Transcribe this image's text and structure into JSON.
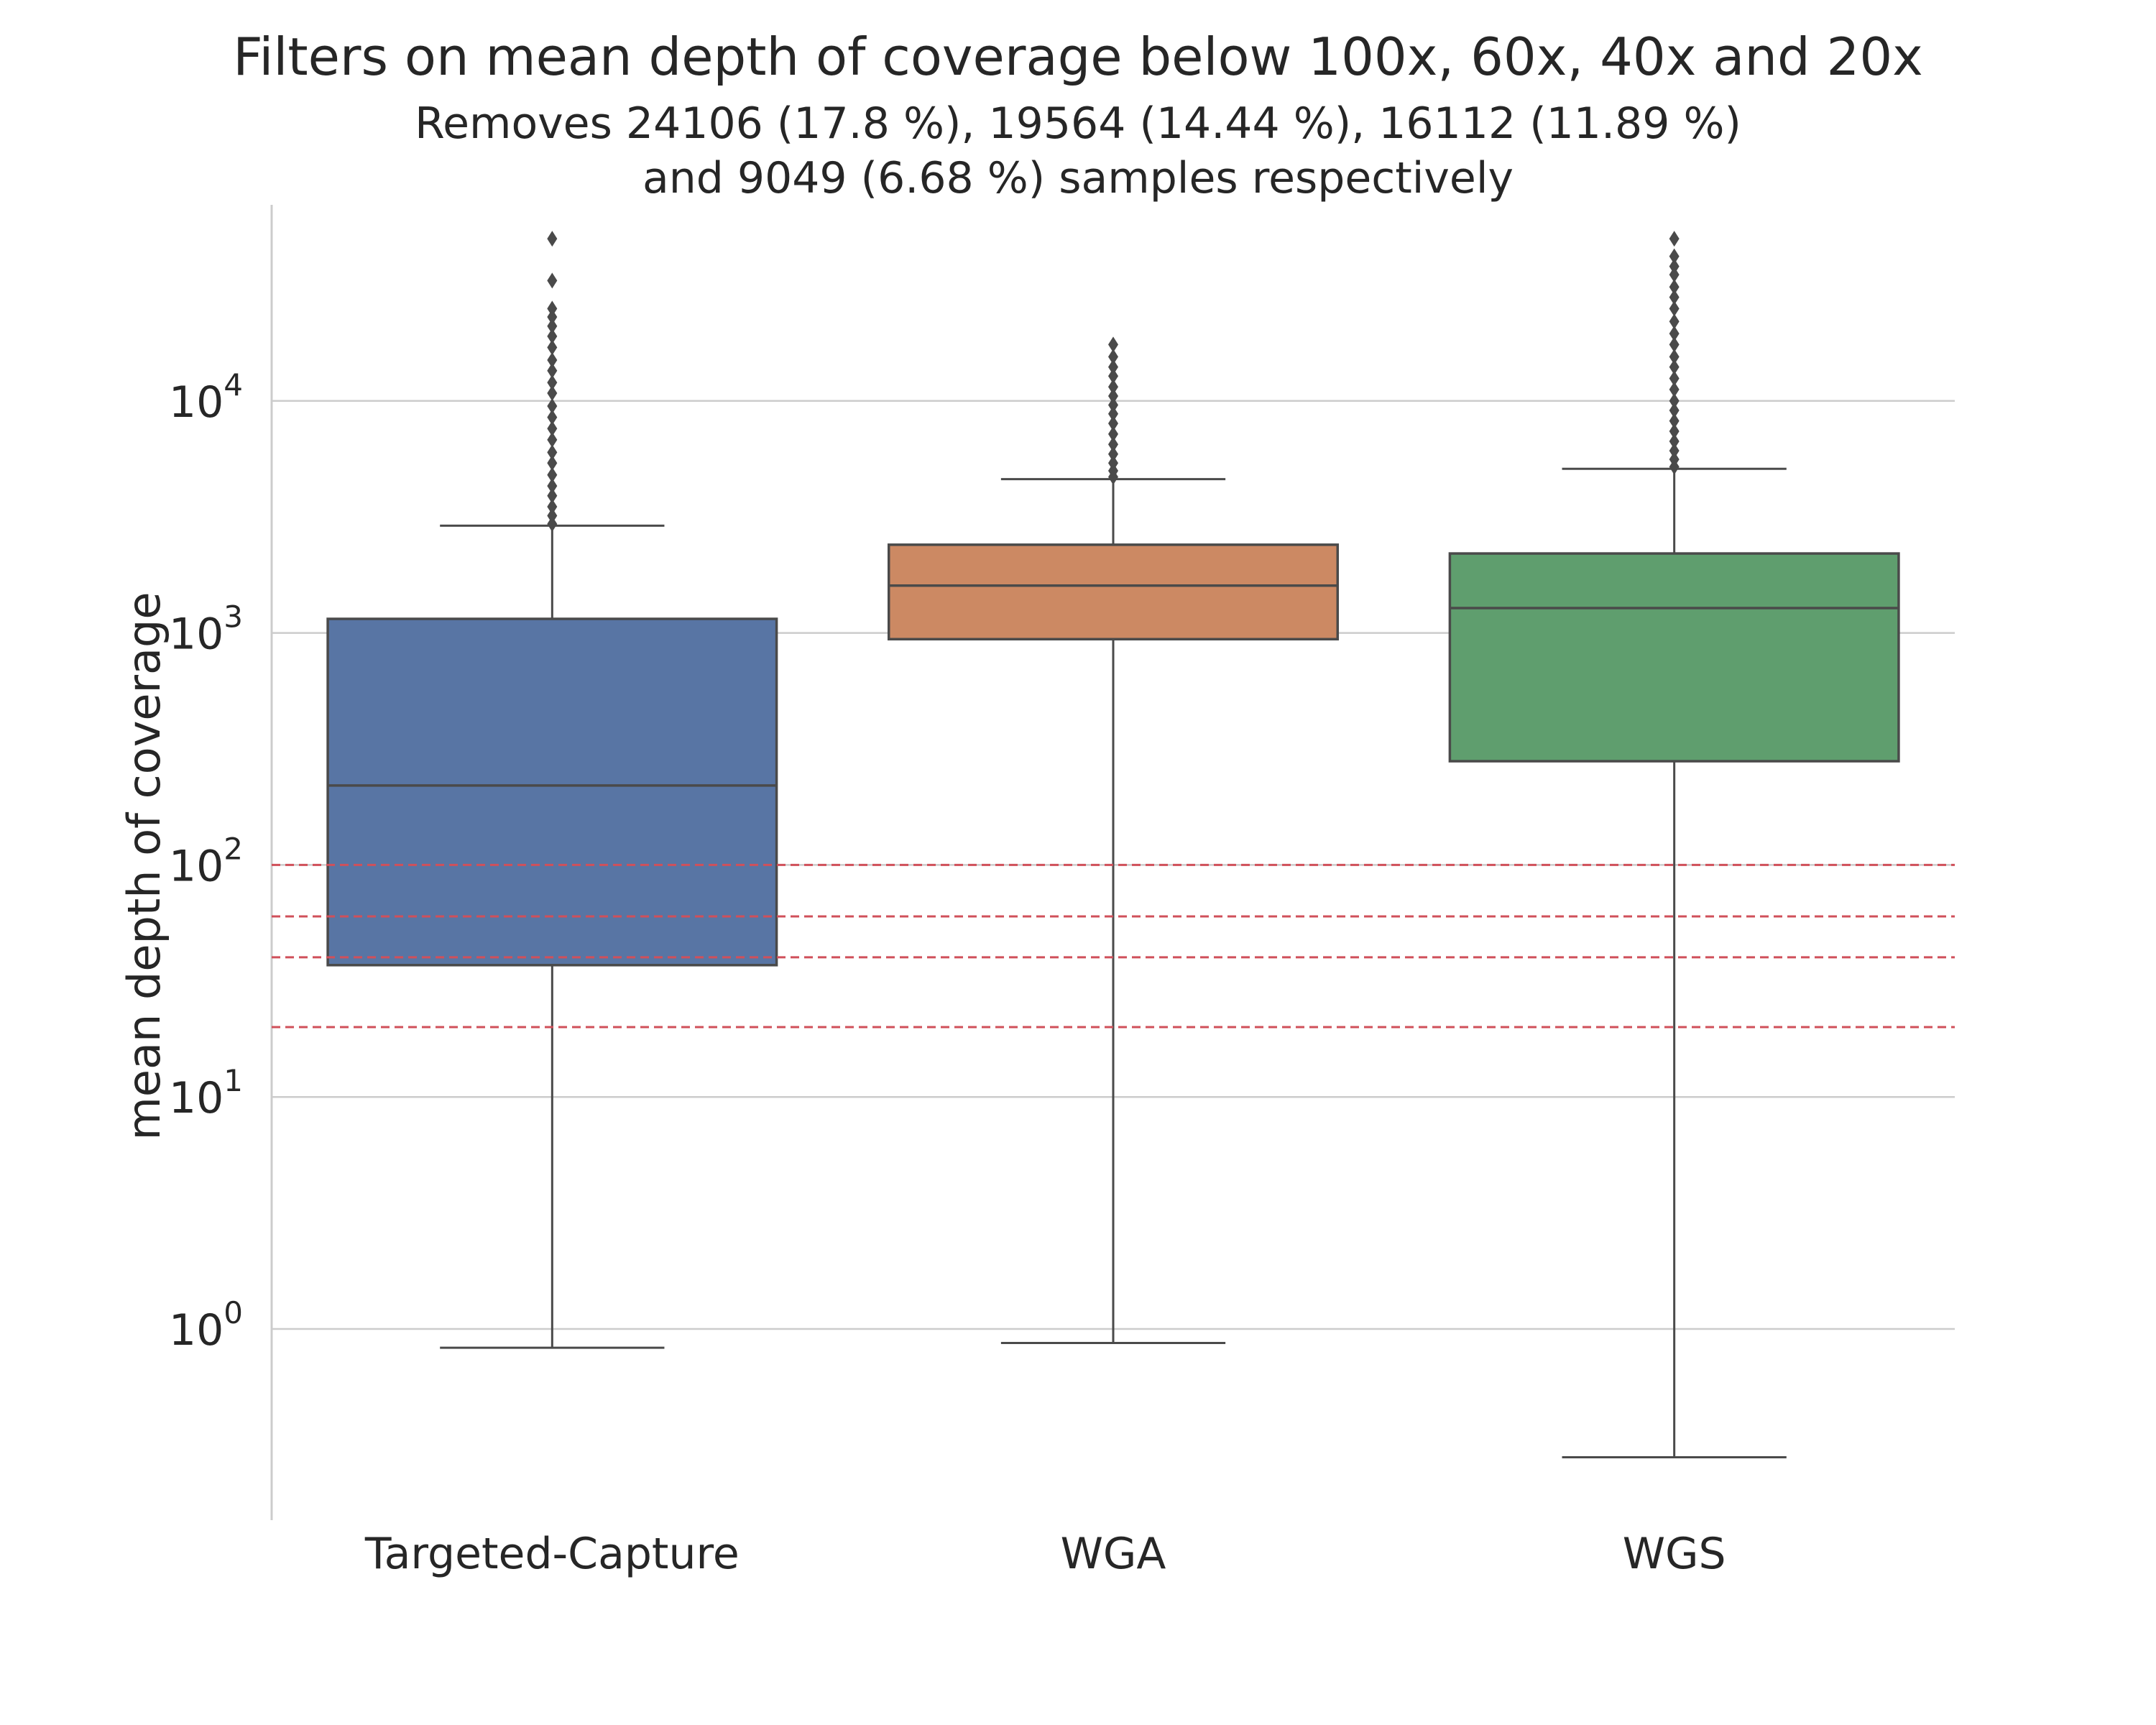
{
  "chart_data": {
    "type": "box",
    "title": "Filters on mean depth of coverage below 100x, 60x, 40x and 20x",
    "subtitle": [
      "Removes 24106 (17.8 %), 19564 (14.44 %), 16112 (11.89 %)",
      "and 9049 (6.68 %) samples respectively"
    ],
    "ylabel": "mean depth of coverage",
    "yscale": "log",
    "ylim": [
      0.15,
      70000
    ],
    "yticks": [
      {
        "value": 1,
        "base": "10",
        "exp": "0"
      },
      {
        "value": 10,
        "base": "10",
        "exp": "1"
      },
      {
        "value": 100,
        "base": "10",
        "exp": "2"
      },
      {
        "value": 1000,
        "base": "10",
        "exp": "3"
      },
      {
        "value": 10000,
        "base": "10",
        "exp": "4"
      }
    ],
    "grid": "horizontal",
    "categories": [
      "Targeted-Capture",
      "WGA",
      "WGS"
    ],
    "boxes": [
      {
        "category": "Targeted-Capture",
        "color": "#5875a4",
        "whisker_low": 0.83,
        "q1": 37,
        "median": 220,
        "q3": 1150,
        "whisker_high": 2900,
        "outliers": [
          2950,
          3200,
          3500,
          3900,
          4300,
          4800,
          5400,
          6000,
          6800,
          7600,
          8500,
          9500,
          10800,
          12000,
          13500,
          15000,
          17000,
          19000,
          21000,
          23000,
          25000,
          33000,
          50000
        ]
      },
      {
        "category": "WGA",
        "color": "#cc8963",
        "whisker_low": 0.87,
        "q1": 940,
        "median": 1600,
        "q3": 2400,
        "whisker_high": 4600,
        "outliers": [
          4700,
          5000,
          5400,
          5900,
          6500,
          7200,
          8000,
          8800,
          9600,
          10500,
          11500,
          12800,
          14000,
          15500,
          17500
        ]
      },
      {
        "category": "WGS",
        "color": "#5f9e6e",
        "whisker_low": 0.28,
        "q1": 280,
        "median": 1280,
        "q3": 2200,
        "whisker_high": 5100,
        "outliers": [
          5200,
          5600,
          6100,
          6700,
          7400,
          8200,
          9100,
          10000,
          11200,
          12500,
          14000,
          15500,
          17500,
          19500,
          22000,
          25000,
          28000,
          31000,
          35000,
          38000,
          42000,
          50000
        ]
      }
    ],
    "threshold_lines": [
      {
        "value": 100,
        "color": "#d0505a",
        "style": "dashed"
      },
      {
        "value": 60,
        "color": "#d0505a",
        "style": "dashed"
      },
      {
        "value": 40,
        "color": "#d0505a",
        "style": "dashed"
      },
      {
        "value": 20,
        "color": "#d0505a",
        "style": "dashed"
      }
    ],
    "colors": {
      "axis": "#cccccc",
      "grid": "#cccccc",
      "box_edge": "#4a4a4a",
      "text": "#262626"
    }
  }
}
